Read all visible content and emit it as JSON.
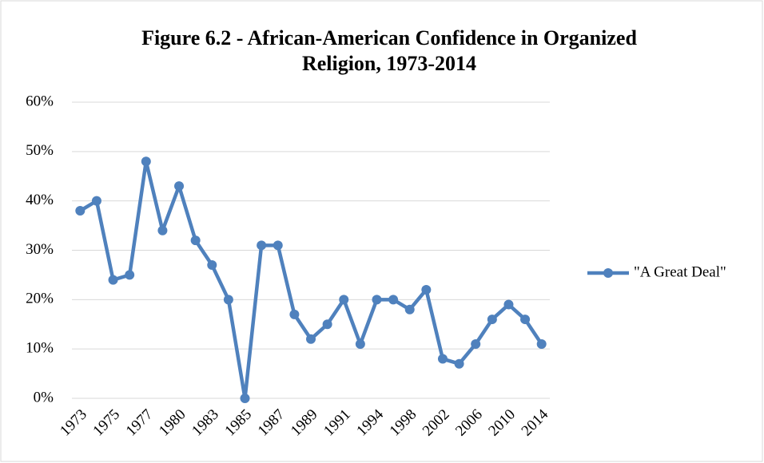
{
  "chart_data": {
    "type": "line",
    "title": [
      "Figure 6.2 - African-American Confidence in Organized",
      "Religion, 1973-2014"
    ],
    "categories": [
      "1973",
      null,
      "1975",
      null,
      "1977",
      null,
      "1980",
      null,
      "1983",
      null,
      "1985",
      null,
      "1987",
      null,
      "1989",
      null,
      "1991",
      null,
      "1994",
      null,
      "1998",
      null,
      "2002",
      null,
      "2006",
      null,
      "2010",
      null,
      "2014"
    ],
    "series": [
      {
        "name": "\"A Great Deal\"",
        "color": "#4f81bd",
        "values": [
          38,
          40,
          24,
          25,
          48,
          34,
          43,
          32,
          27,
          20,
          0,
          31,
          31,
          17,
          12,
          15,
          20,
          11,
          20,
          20,
          18,
          22,
          8,
          7,
          11,
          16,
          19,
          16,
          11
        ]
      }
    ],
    "ylim": [
      0,
      60
    ],
    "yticks": [
      {
        "value": 0,
        "label": "0%"
      },
      {
        "value": 10,
        "label": "10%"
      },
      {
        "value": 20,
        "label": "20%"
      },
      {
        "value": 30,
        "label": "30%"
      },
      {
        "value": 40,
        "label": "40%"
      },
      {
        "value": 50,
        "label": "50%"
      },
      {
        "value": 60,
        "label": "60%"
      }
    ],
    "grid": true,
    "legend": "right"
  }
}
